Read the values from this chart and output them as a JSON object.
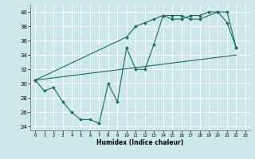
{
  "title": "",
  "xlabel": "Humidex (Indice chaleur)",
  "background_color": "#cce8e8",
  "grid_color": "#ffffff",
  "line_color": "#1e6b5e",
  "xlim": [
    -0.5,
    23.5
  ],
  "ylim": [
    23.5,
    41.0
  ],
  "xticks": [
    0,
    1,
    2,
    3,
    4,
    5,
    6,
    7,
    8,
    9,
    10,
    11,
    12,
    13,
    14,
    15,
    16,
    17,
    18,
    19,
    20,
    21,
    22,
    23
  ],
  "yticks": [
    24,
    26,
    28,
    30,
    32,
    34,
    36,
    38,
    40
  ],
  "series1": {
    "x": [
      0,
      1,
      2,
      3,
      4,
      5,
      6,
      7,
      8,
      9,
      10,
      11,
      12,
      13,
      14,
      15,
      16,
      17,
      18,
      20,
      21,
      22
    ],
    "y": [
      30.5,
      29.0,
      29.5,
      27.5,
      26.0,
      25.0,
      25.0,
      24.5,
      30.0,
      27.5,
      35.0,
      32.0,
      32.0,
      35.5,
      39.5,
      39.5,
      39.5,
      39.0,
      39.0,
      40.0,
      40.0,
      35.0
    ]
  },
  "series2": {
    "x": [
      0,
      10,
      11,
      12,
      13,
      14,
      15,
      16,
      17,
      18,
      19,
      20,
      21,
      22
    ],
    "y": [
      30.5,
      36.5,
      38.0,
      38.5,
      39.0,
      39.5,
      39.0,
      39.0,
      39.5,
      39.5,
      40.0,
      40.0,
      38.5,
      35.0
    ]
  },
  "series3": {
    "x": [
      0,
      22
    ],
    "y": [
      30.5,
      34.0
    ]
  }
}
